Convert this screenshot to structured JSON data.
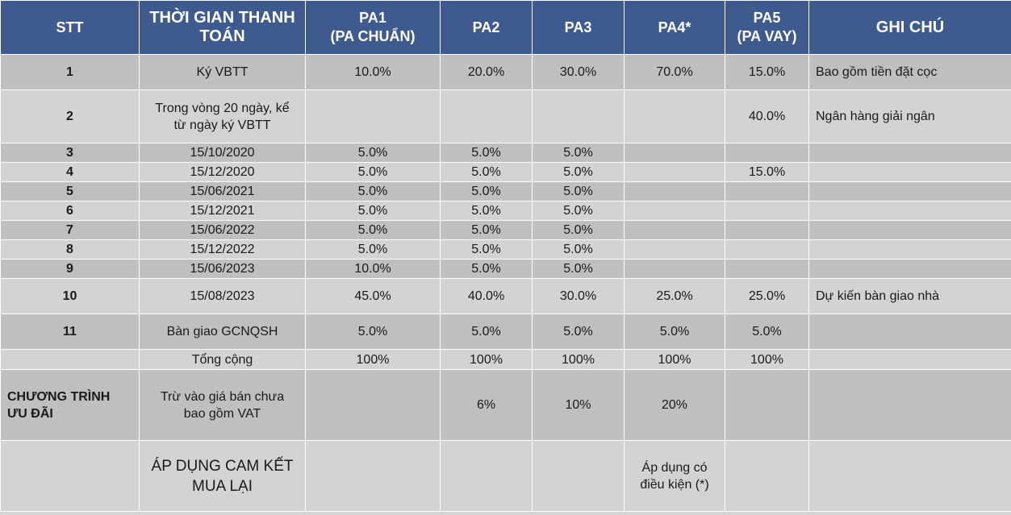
{
  "columns": [
    "STT",
    "THỜI GIAN THANH TOÁN",
    "PA1 (PA CHUẨN)",
    "PA2",
    "PA3",
    "PA4*",
    "PA5 (PA VAY)",
    "GHI CHÚ"
  ],
  "header": {
    "stt": "STT",
    "time_line1": "THỜI GIAN THANH",
    "time_line2": "TOÁN",
    "pa1_line1": "PA1",
    "pa1_line2": "(PA CHUẨN)",
    "pa2": "PA2",
    "pa3": "PA3",
    "pa4": "PA4*",
    "pa5_line1": "PA5",
    "pa5_line2": "(PA VAY)",
    "note": "GHI CHÚ"
  },
  "rows": [
    {
      "stt": "1",
      "time": "Ký VBTT",
      "pa1": "10.0%",
      "pa2": "20.0%",
      "pa3": "30.0%",
      "pa4": "70.0%",
      "pa5": "15.0%",
      "note": "Bao gồm tiền đặt cọc"
    },
    {
      "stt": "2",
      "time_line1": "Trong vòng 20 ngày, kể",
      "time_line2": "từ ngày ký VBTT",
      "pa1": "",
      "pa2": "",
      "pa3": "",
      "pa4": "",
      "pa5": "40.0%",
      "note": "Ngân hàng giải ngân"
    },
    {
      "stt": "3",
      "time": "15/10/2020",
      "pa1": "5.0%",
      "pa2": "5.0%",
      "pa3": "5.0%",
      "pa4": "",
      "pa5": "",
      "note": ""
    },
    {
      "stt": "4",
      "time": "15/12/2020",
      "pa1": "5.0%",
      "pa2": "5.0%",
      "pa3": "5.0%",
      "pa4": "",
      "pa5": "15.0%",
      "note": ""
    },
    {
      "stt": "5",
      "time": "15/06/2021",
      "pa1": "5.0%",
      "pa2": "5.0%",
      "pa3": "5.0%",
      "pa4": "",
      "pa5": "",
      "note": ""
    },
    {
      "stt": "6",
      "time": "15/12/2021",
      "pa1": "5.0%",
      "pa2": "5.0%",
      "pa3": "5.0%",
      "pa4": "",
      "pa5": "",
      "note": ""
    },
    {
      "stt": "7",
      "time": "15/06/2022",
      "pa1": "5.0%",
      "pa2": "5.0%",
      "pa3": "5.0%",
      "pa4": "",
      "pa5": "",
      "note": ""
    },
    {
      "stt": "8",
      "time": "15/12/2022",
      "pa1": "5.0%",
      "pa2": "5.0%",
      "pa3": "5.0%",
      "pa4": "",
      "pa5": "",
      "note": ""
    },
    {
      "stt": "9",
      "time": "15/06/2023",
      "pa1": "10.0%",
      "pa2": "5.0%",
      "pa3": "5.0%",
      "pa4": "",
      "pa5": "",
      "note": ""
    },
    {
      "stt": "10",
      "time": "15/08/2023",
      "pa1": "45.0%",
      "pa2": "40.0%",
      "pa3": "30.0%",
      "pa4": "25.0%",
      "pa5": "25.0%",
      "note": "Dự kiến bàn giao nhà"
    },
    {
      "stt": "11",
      "time": "Bàn giao GCNQSH",
      "pa1": "5.0%",
      "pa2": "5.0%",
      "pa3": "5.0%",
      "pa4": "5.0%",
      "pa5": "5.0%",
      "note": ""
    }
  ],
  "total": {
    "label": "Tổng cộng",
    "pa1": "100%",
    "pa2": "100%",
    "pa3": "100%",
    "pa4": "100%",
    "pa5": "100%"
  },
  "promo": {
    "title_line1": "CHƯƠNG TRÌNH",
    "title_line2": "ƯU ĐÃI",
    "desc_line1": "Trừ vào giá bán chưa",
    "desc_line2": "bao gồm VAT",
    "pa1": "",
    "pa2": "6%",
    "pa3": "10%",
    "pa4": "20%",
    "pa5": ""
  },
  "buyback": {
    "label_line1": "ÁP DỤNG CAM KẾT",
    "label_line2": "MUA LẠI",
    "pa4_line1": "Áp dụng có",
    "pa4_line2": "điều kiện (*)"
  },
  "colors": {
    "header_bg": "#3e5a8e",
    "row_dark": "#bfbfbf",
    "row_light": "#d3d3d3"
  }
}
